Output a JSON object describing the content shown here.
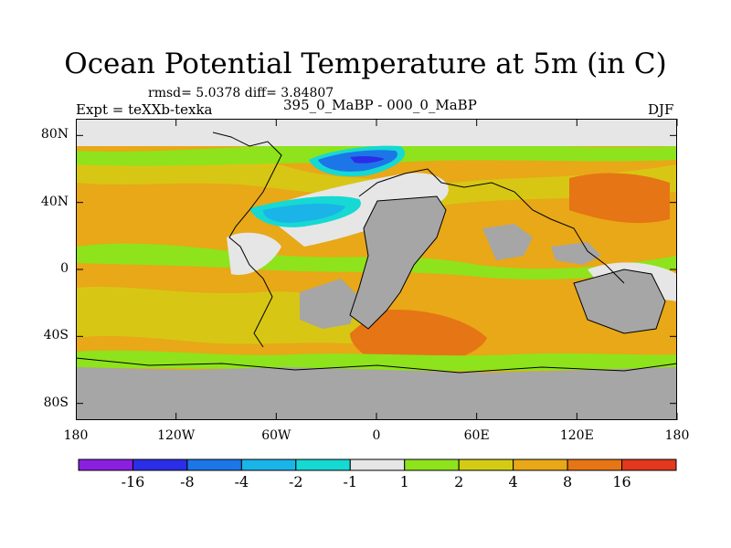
{
  "title": "Ocean Potential Temperature at 5m (in C)",
  "stats_text": "rmsd= 5.0378 diff= 3.84807",
  "experiment_text": "Expt = teXXb-texka",
  "subtitle": "395_0_MaBP - 000_0_MaBP",
  "season": "DJF",
  "y_axis": {
    "labels": [
      "80N",
      "40N",
      "0",
      "40S",
      "80S"
    ],
    "values": [
      80,
      40,
      0,
      -40,
      -80
    ],
    "range": [
      -90,
      90
    ]
  },
  "x_axis": {
    "labels": [
      "180",
      "120W",
      "60W",
      "0",
      "60E",
      "120E",
      "180"
    ],
    "values": [
      -180,
      -120,
      -60,
      0,
      60,
      120,
      180
    ],
    "range": [
      -180,
      180
    ]
  },
  "colorbar": {
    "labels": [
      "-16",
      "-8",
      "-4",
      "-2",
      "-1",
      "1",
      "2",
      "4",
      "8",
      "16"
    ],
    "colors": [
      "#8b1fe0",
      "#2b2ee6",
      "#1d76e8",
      "#1ab4e8",
      "#15d9d2",
      "#e6e6e6",
      "#8ee31c",
      "#d4cc14",
      "#e8a817",
      "#e67515",
      "#e2381c"
    ]
  },
  "land_color": "#a6a6a6"
}
